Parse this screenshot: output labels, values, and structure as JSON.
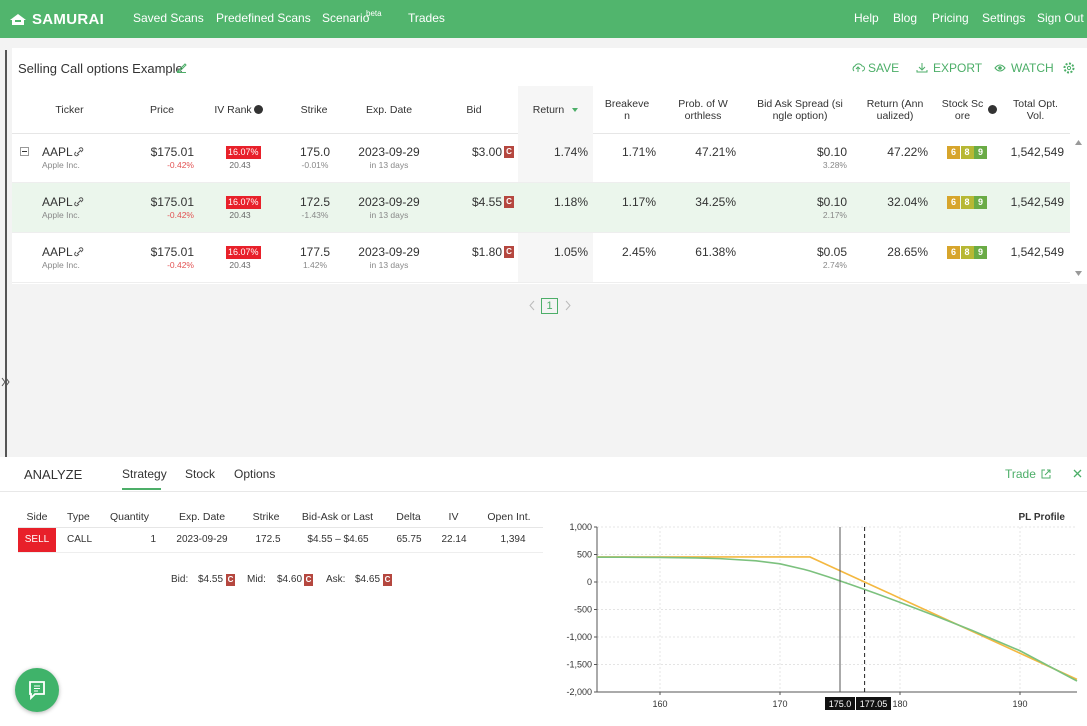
{
  "nav": {
    "logo": "SAMURAI",
    "links": [
      "Saved Scans",
      "Predefined Scans",
      "Scenario",
      "Trades"
    ],
    "scenario_badge": "beta",
    "right_links": [
      "Help",
      "Blog",
      "Pricing",
      "Settings",
      "Sign Out"
    ]
  },
  "scan": {
    "title": "Selling Call options Example",
    "actions": [
      "SAVE",
      "EXPORT",
      "WATCH"
    ],
    "columns": [
      "Ticker",
      "Price",
      "IV Rank",
      "Strike",
      "Exp. Date",
      "Bid",
      "Return",
      "Breakeven",
      "Prob. of Worthless",
      "Bid Ask Spread (single option)",
      "Return (Annualized)",
      "Stock Score",
      "Total Opt. Vol."
    ],
    "rows": [
      {
        "ticker": "AAPL",
        "company": "Apple Inc.",
        "price": "$175.01",
        "price_change": "-0.42%",
        "iv_rank": "16.07%",
        "iv": "20.43",
        "strike": "175.0",
        "strike_change": "-0.01%",
        "exp_date": "2023-09-29",
        "days": "in 13 days",
        "bid": "$3.00",
        "bid_flag": "C",
        "return": "1.74%",
        "breakeven": "1.71%",
        "prob_worthless": "47.21%",
        "spread": "$0.10",
        "spread_pct": "3.28%",
        "return_annualized": "47.22%",
        "scores": [
          "6",
          "8",
          "9"
        ],
        "total_vol": "1,542,549"
      },
      {
        "ticker": "AAPL",
        "company": "Apple Inc.",
        "price": "$175.01",
        "price_change": "-0.42%",
        "iv_rank": "16.07%",
        "iv": "20.43",
        "strike": "172.5",
        "strike_change": "-1.43%",
        "exp_date": "2023-09-29",
        "days": "in 13 days",
        "bid": "$4.55",
        "bid_flag": "C",
        "return": "1.18%",
        "breakeven": "1.17%",
        "prob_worthless": "34.25%",
        "spread": "$0.10",
        "spread_pct": "2.17%",
        "return_annualized": "32.04%",
        "scores": [
          "6",
          "8",
          "9"
        ],
        "total_vol": "1,542,549"
      },
      {
        "ticker": "AAPL",
        "company": "Apple Inc.",
        "price": "$175.01",
        "price_change": "-0.42%",
        "iv_rank": "16.07%",
        "iv": "20.43",
        "strike": "177.5",
        "strike_change": "1.42%",
        "exp_date": "2023-09-29",
        "days": "in 13 days",
        "bid": "$1.80",
        "bid_flag": "C",
        "return": "1.05%",
        "breakeven": "2.45%",
        "prob_worthless": "61.38%",
        "spread": "$0.05",
        "spread_pct": "2.74%",
        "return_annualized": "28.65%",
        "scores": [
          "6",
          "8",
          "9"
        ],
        "total_vol": "1,542,549"
      }
    ],
    "pagination": "1"
  },
  "analyze": {
    "title": "ANALYZE",
    "tabs": [
      "Strategy",
      "Stock",
      "Options"
    ],
    "trade": "Trade",
    "columns": [
      "Side",
      "Type",
      "Quantity",
      "Exp. Date",
      "Strike",
      "Bid-Ask or Last",
      "Delta",
      "IV",
      "Open Int."
    ],
    "legs": [
      [
        "SELL",
        "CALL",
        "1",
        "2023-09-29",
        "172.5",
        "$4.55 – $4.65",
        "65.75",
        "22.14",
        "1,394"
      ]
    ],
    "quote": [
      {
        "label": "Bid:",
        "price": "$4.55",
        "flag": "C"
      },
      {
        "label": "Mid:",
        "price": "$4.60",
        "flag": "C"
      },
      {
        "label": "Ask:",
        "price": "$4.65",
        "flag": "C"
      }
    ]
  },
  "chart_data": {
    "type": "line",
    "title": "PL Profile",
    "x": [
      154.75,
      157,
      160,
      163,
      165,
      168,
      170,
      172,
      172.5,
      174,
      175,
      176,
      178,
      180,
      183,
      186,
      190,
      194.75
    ],
    "series": [
      {
        "color": "#f4b840",
        "values": [
          455,
          455,
          455,
          455,
          455,
          455,
          455,
          455,
          455,
          305,
          205,
          105,
          -95,
          -295,
          -595,
          -895,
          -1295,
          -1770
        ]
      },
      {
        "color": "#7cc17e",
        "values": [
          452,
          451,
          447,
          438,
          425,
          385,
          330,
          230,
          200,
          95,
          20,
          -55,
          -210,
          -370,
          -620,
          -880,
          -1250,
          -1800
        ]
      }
    ],
    "xlim": [
      154.75,
      194.75
    ],
    "ylim": [
      -2000,
      1000
    ],
    "xticks": [
      160,
      170,
      180,
      190
    ],
    "yticks": [
      {
        "value": -2000,
        "label": "-2,000"
      },
      {
        "value": -1500,
        "label": "-1,500"
      },
      {
        "value": -1000,
        "label": "-1,000"
      },
      -500,
      0,
      500,
      {
        "value": 1000,
        "label": "1,000"
      }
    ],
    "grid": true,
    "markers": [
      {
        "value": 175.0,
        "label": "175.0"
      },
      {
        "value": 177.05,
        "label": "177.05"
      }
    ]
  }
}
